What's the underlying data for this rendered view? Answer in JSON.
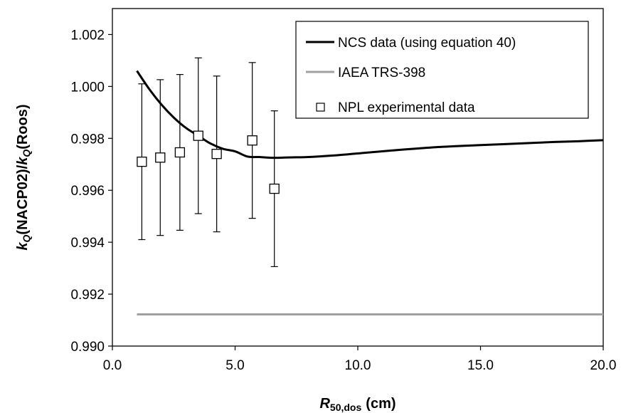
{
  "chart_data": {
    "type": "line",
    "xlabel": {
      "italic": "R",
      "sub": "50,dos",
      "unit": "(cm)"
    },
    "ylabel": {
      "k1": "k",
      "sub1": "Q",
      "mid": "(NACP02)/",
      "k2": "k",
      "sub2": "Q",
      "end": "(Roos)"
    },
    "xlim": [
      0,
      20
    ],
    "ylim": [
      0.99,
      1.003
    ],
    "x_ticks": [
      {
        "value": 0,
        "label": "0.0"
      },
      {
        "value": 5,
        "label": "5.0"
      },
      {
        "value": 10,
        "label": "10.0"
      },
      {
        "value": 15,
        "label": "15.0"
      },
      {
        "value": 20,
        "label": "20.0"
      }
    ],
    "y_ticks": [
      {
        "value": 0.99,
        "label": "0.990"
      },
      {
        "value": 0.992,
        "label": "0.992"
      },
      {
        "value": 0.994,
        "label": "0.994"
      },
      {
        "value": 0.996,
        "label": "0.996"
      },
      {
        "value": 0.998,
        "label": "0.998"
      },
      {
        "value": 1.0,
        "label": "1.000"
      },
      {
        "value": 1.002,
        "label": "1.002"
      }
    ],
    "grid": false,
    "legend_position": "top-right",
    "series": [
      {
        "name": "NCS data (using equation 40)",
        "kind": "line",
        "color": "#000000",
        "x": [
          1.0,
          1.5,
          2.0,
          2.5,
          3.0,
          3.5,
          4.0,
          4.5,
          5.0,
          5.5,
          6.0,
          6.5,
          7.0,
          7.5,
          8.0,
          9.0,
          10.0,
          11.0,
          12.0,
          13.0,
          14.0,
          15.0,
          16.0,
          17.0,
          18.0,
          19.0,
          20.0
        ],
        "y": [
          1.0006,
          0.9999,
          0.9993,
          0.9988,
          0.9984,
          0.9981,
          0.9978,
          0.9976,
          0.9975,
          0.9973,
          0.99728,
          0.99725,
          0.99726,
          0.99727,
          0.99728,
          0.99734,
          0.99742,
          0.9975,
          0.99758,
          0.99765,
          0.9977,
          0.99774,
          0.99778,
          0.99782,
          0.99786,
          0.99789,
          0.99793
        ]
      },
      {
        "name": "IAEA TRS-398",
        "kind": "line",
        "color": "#a0a0a0",
        "x": [
          1.0,
          20.0
        ],
        "y": [
          0.99122,
          0.99122
        ]
      },
      {
        "name": "NPL experimental data",
        "kind": "scatter",
        "marker": "square",
        "x": [
          1.2,
          1.95,
          2.75,
          3.5,
          4.25,
          5.7,
          6.6
        ],
        "y": [
          0.9971,
          0.99726,
          0.99746,
          0.9981,
          0.9974,
          0.99792,
          0.99606
        ],
        "error": [
          0.003,
          0.003,
          0.003,
          0.003,
          0.003,
          0.003,
          0.003
        ]
      }
    ]
  }
}
